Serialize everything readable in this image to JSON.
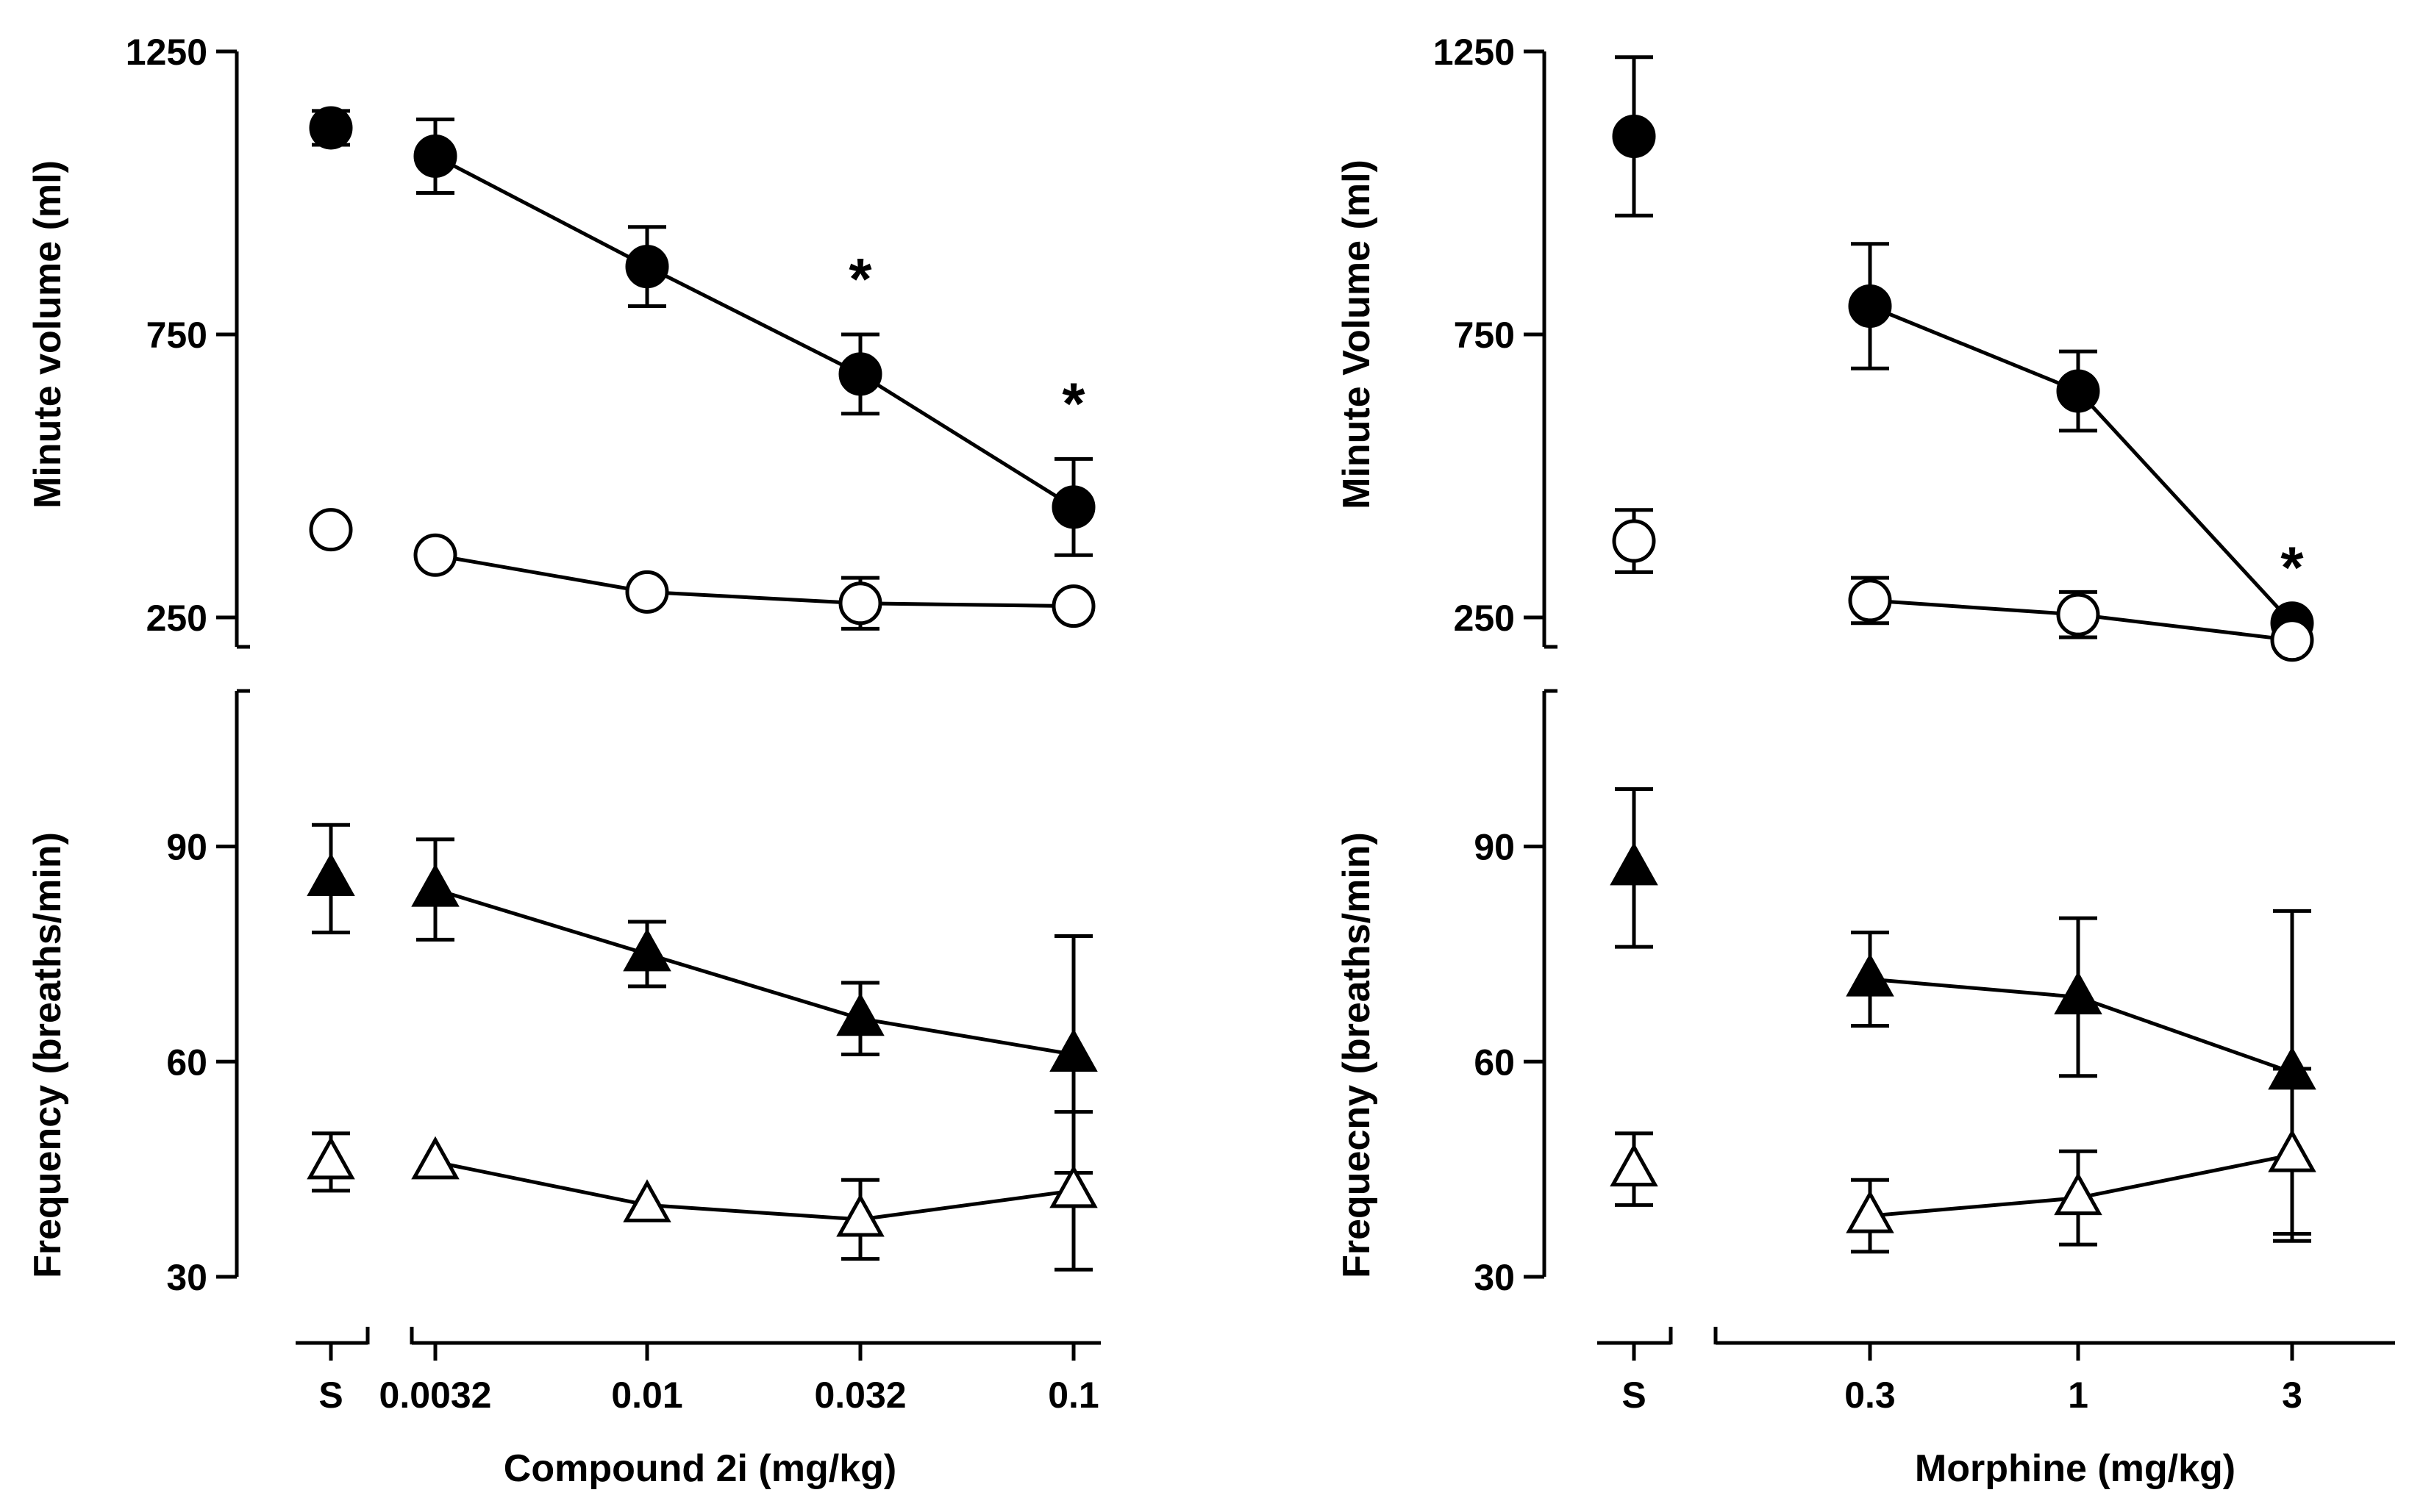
{
  "chart_data": [
    {
      "panel": "left",
      "type": "line",
      "xlabel": "Compound 2i (mg/kg)",
      "x_tick_labels": [
        "S",
        "0.0032",
        "0.01",
        "0.032",
        "0.1"
      ],
      "top": {
        "ylabel": "Minute volume (ml)",
        "ylim": [
          250,
          1250
        ],
        "yticks": [
          250,
          750,
          1250
        ],
        "series": [
          {
            "marker": "filled-circle",
            "saline": {
              "y": 1115,
              "err": 30
            },
            "points": [
              {
                "x": "0.0032",
                "y": 1065,
                "err": 65
              },
              {
                "x": "0.01",
                "y": 870,
                "err": 70
              },
              {
                "x": "0.032",
                "y": 680,
                "err": 70
              },
              {
                "x": "0.1",
                "y": 445,
                "err": 85
              }
            ]
          },
          {
            "marker": "open-circle",
            "saline": {
              "y": 405,
              "err": 0
            },
            "points": [
              {
                "x": "0.0032",
                "y": 360,
                "err": 0
              },
              {
                "x": "0.01",
                "y": 295,
                "err": 0
              },
              {
                "x": "0.032",
                "y": 275,
                "err": 45
              },
              {
                "x": "0.1",
                "y": 270,
                "err": 0
              }
            ]
          }
        ],
        "significance": [
          {
            "x": "0.032",
            "label": "*"
          },
          {
            "x": "0.1",
            "label": "*"
          }
        ]
      },
      "bottom": {
        "ylabel": "Frequency (breaths/min)",
        "ylim": [
          30,
          100
        ],
        "yticks": [
          30,
          60,
          90
        ],
        "series": [
          {
            "marker": "filled-triangle",
            "saline": {
              "y": 85.5,
              "err": 7.5
            },
            "points": [
              {
                "x": "0.0032",
                "y": 84,
                "err": 7
              },
              {
                "x": "0.01",
                "y": 75,
                "err": 4.5
              },
              {
                "x": "0.032",
                "y": 66,
                "err": 5
              },
              {
                "x": "0.1",
                "y": 61,
                "err": 16.5
              }
            ]
          },
          {
            "marker": "open-triangle",
            "saline": {
              "y": 46,
              "err": 4
            },
            "points": [
              {
                "x": "0.0032",
                "y": 46,
                "err": 0
              },
              {
                "x": "0.01",
                "y": 40,
                "err": 0
              },
              {
                "x": "0.032",
                "y": 38,
                "err": 5.5
              },
              {
                "x": "0.1",
                "y": 42,
                "err": 11
              }
            ]
          }
        ]
      }
    },
    {
      "panel": "right",
      "type": "line",
      "xlabel": "Morphine (mg/kg)",
      "x_tick_labels": [
        "S",
        "0.3",
        "1",
        "3"
      ],
      "top": {
        "ylabel": "Minute Volume (ml)",
        "ylim": [
          250,
          1250
        ],
        "yticks": [
          250,
          750,
          1250
        ],
        "series": [
          {
            "marker": "filled-circle",
            "saline": {
              "y": 1100,
              "err": 140
            },
            "points": [
              {
                "x": "0.3",
                "y": 800,
                "err": 110
              },
              {
                "x": "1",
                "y": 650,
                "err": 70
              },
              {
                "x": "3",
                "y": 240,
                "err": 0
              }
            ]
          },
          {
            "marker": "open-circle",
            "saline": {
              "y": 385,
              "err": 55
            },
            "points": [
              {
                "x": "0.3",
                "y": 280,
                "err": 40
              },
              {
                "x": "1",
                "y": 255,
                "err": 40
              },
              {
                "x": "3",
                "y": 210,
                "err": 0
              }
            ]
          }
        ],
        "significance": [
          {
            "x": "3",
            "label": "*"
          }
        ]
      },
      "bottom": {
        "ylabel": "Frequecny (breaths/min)",
        "ylim": [
          30,
          100
        ],
        "yticks": [
          30,
          60,
          90
        ],
        "series": [
          {
            "marker": "filled-triangle",
            "saline": {
              "y": 87,
              "err": 11
            },
            "points": [
              {
                "x": "0.3",
                "y": 71.5,
                "err": 6.5
              },
              {
                "x": "1",
                "y": 69,
                "err": 11
              },
              {
                "x": "3",
                "y": 58.5,
                "err": 22.5
              }
            ]
          },
          {
            "marker": "open-triangle",
            "saline": {
              "y": 45,
              "err": 5
            },
            "points": [
              {
                "x": "0.3",
                "y": 38.5,
                "err": 5
              },
              {
                "x": "1",
                "y": 41,
                "err": 6.5
              },
              {
                "x": "3",
                "y": 47,
                "err": 12
              }
            ]
          }
        ]
      }
    }
  ]
}
